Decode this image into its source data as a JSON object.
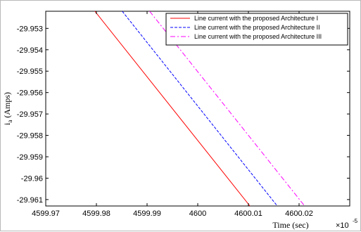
{
  "chart_data": {
    "type": "line",
    "title": "",
    "xlabel": "Time (sec)",
    "x_exponent": "×10",
    "x_exponent_power": "-5",
    "ylabel_main": "i",
    "ylabel_sub": "a",
    "ylabel_rest": " (Amps)",
    "xlim": [
      4599.97,
      4600.03
    ],
    "ylim": [
      -29.9613,
      -29.9522
    ],
    "xticks": [
      4599.97,
      4599.98,
      4599.99,
      4600,
      4600.01,
      4600.02
    ],
    "xtick_labels": [
      "4599.97",
      "4599.98",
      "4599.99",
      "4600",
      "4600.01",
      "4600.02"
    ],
    "yticks": [
      -29.953,
      -29.954,
      -29.955,
      -29.956,
      -29.957,
      -29.958,
      -29.959,
      -29.96,
      -29.961
    ],
    "ytick_labels": [
      "-29.953",
      "-29.954",
      "-29.955",
      "-29.956",
      "-29.957",
      "-29.958",
      "-29.959",
      "-29.96",
      "-29.961"
    ],
    "grid": false,
    "legend_position": "top-right",
    "series": [
      {
        "name": "Line current with the proposed Architecture I",
        "color": "#ff0000",
        "dash": "solid",
        "x": [
          4599.9797,
          4600.0103
        ],
        "y": [
          -29.9522,
          -29.9613
        ]
      },
      {
        "name": "Line current with the proposed Architecture II",
        "color": "#0000ff",
        "dash": "dashed",
        "x": [
          4599.9851,
          4600.0157
        ],
        "y": [
          -29.9522,
          -29.9613
        ]
      },
      {
        "name": "Line current with the proposed Architecture III",
        "color": "#ff00ff",
        "dash": "dashdot",
        "x": [
          4599.9905,
          4600.0211
        ],
        "y": [
          -29.9522,
          -29.9613
        ]
      }
    ]
  }
}
